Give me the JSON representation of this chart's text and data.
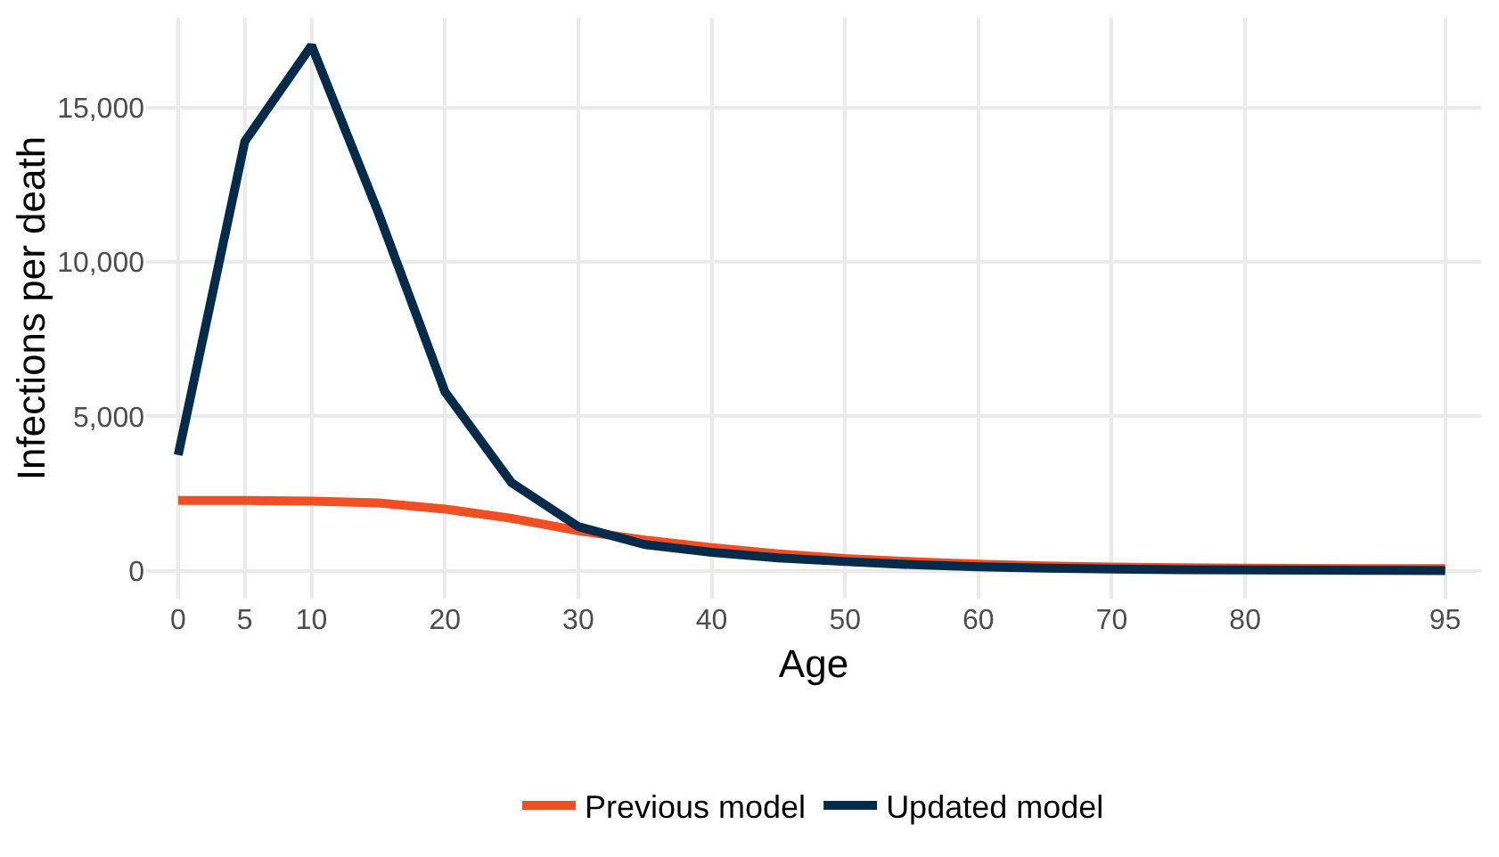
{
  "chart_data": {
    "type": "line",
    "xlabel": "Age",
    "ylabel": "Infections per death",
    "x": [
      0,
      5,
      10,
      15,
      20,
      25,
      30,
      35,
      40,
      45,
      50,
      55,
      60,
      65,
      70,
      75,
      80,
      85,
      90,
      95
    ],
    "series": [
      {
        "name": "Previous model",
        "color": "#f04e23",
        "values": [
          2280,
          2280,
          2260,
          2200,
          2000,
          1700,
          1300,
          1000,
          750,
          550,
          400,
          300,
          220,
          160,
          120,
          100,
          90,
          80,
          75,
          70
        ]
      },
      {
        "name": "Updated model",
        "color": "#052b4b",
        "values": [
          3750,
          13900,
          17000,
          11600,
          5800,
          2850,
          1430,
          850,
          600,
          420,
          300,
          200,
          130,
          90,
          60,
          40,
          30,
          20,
          15,
          10
        ]
      }
    ],
    "xlim": [
      -2.4,
      97.7
    ],
    "xticks": [
      0,
      5,
      10,
      20,
      30,
      40,
      50,
      60,
      70,
      80,
      95
    ],
    "ylim": [
      -900,
      17900
    ],
    "yticks": [
      {
        "value": 0,
        "label": "0"
      },
      {
        "value": 5000,
        "label": "5,000"
      },
      {
        "value": 10000,
        "label": "10,000"
      },
      {
        "value": 15000,
        "label": "15,000"
      }
    ],
    "grid": true,
    "legend": "bottom",
    "line_style": "solid",
    "marker": "none"
  }
}
